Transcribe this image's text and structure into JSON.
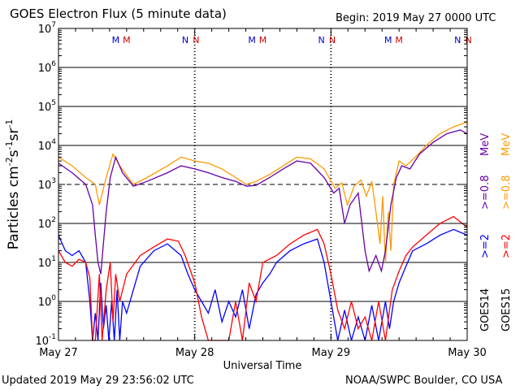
{
  "header": {
    "title": "GOES Electron Flux (5 minute data)",
    "begin": "Begin: 2019 May 27 0000 UTC"
  },
  "footer": {
    "updated": "Updated 2019 May 29 23:56:02 UTC",
    "credit": "NOAA/SWPC Boulder, CO USA"
  },
  "chart_data": {
    "type": "line",
    "title": "GOES Electron Flux (5 minute data)",
    "xlabel": "Universal Time",
    "ylabel": "Particles cm-2s-1sr-1",
    "yscale": "log",
    "ylim": [
      0.1,
      10000000
    ],
    "xlim_days": [
      0,
      3
    ],
    "x_tick_labels": [
      "May 27",
      "May 28",
      "May 29",
      "May 30"
    ],
    "y_tick_labels": [
      {
        "base": "10",
        "exp": "-1"
      },
      {
        "base": "10",
        "exp": "0"
      },
      {
        "base": "10",
        "exp": "1"
      },
      {
        "base": "10",
        "exp": "2"
      },
      {
        "base": "10",
        "exp": "3"
      },
      {
        "base": "10",
        "exp": "4"
      },
      {
        "base": "10",
        "exp": "5"
      },
      {
        "base": "10",
        "exp": "6"
      },
      {
        "base": "10",
        "exp": "7"
      }
    ],
    "alert_threshold": 1000,
    "grid": true,
    "markers": [
      {
        "label": "M",
        "day": 0.42,
        "color": "#0000cc"
      },
      {
        "label": "M",
        "day": 0.5,
        "color": "#cc0000"
      },
      {
        "label": "N",
        "day": 0.93,
        "color": "#0000cc"
      },
      {
        "label": "N",
        "day": 1.01,
        "color": "#cc0000"
      },
      {
        "label": "M",
        "day": 1.42,
        "color": "#0000cc"
      },
      {
        "label": "M",
        "day": 1.5,
        "color": "#cc0000"
      },
      {
        "label": "N",
        "day": 1.93,
        "color": "#0000cc"
      },
      {
        "label": "N",
        "day": 2.01,
        "color": "#cc0000"
      },
      {
        "label": "M",
        "day": 2.42,
        "color": "#0000cc"
      },
      {
        "label": "M",
        "day": 2.5,
        "color": "#cc0000"
      },
      {
        "label": "N",
        "day": 2.93,
        "color": "#0000cc"
      },
      {
        "label": "N",
        "day": 3.01,
        "color": "#cc0000"
      }
    ],
    "legend": {
      "groups": [
        {
          "label": "GOES14",
          "color": "#000000"
        },
        {
          "label": "GOES15",
          "color": "#000000"
        }
      ],
      "entries": [
        {
          "label": ">=2",
          "color": "#0000ff"
        },
        {
          "label": ">=2",
          "color": "#ff0000"
        },
        {
          "label": ">=0.8",
          "color": "#6600aa"
        },
        {
          "label": ">=0.8",
          "color": "#ff9900"
        }
      ],
      "units": [
        {
          "label": "MeV",
          "color": "#6600aa"
        },
        {
          "label": "MeV",
          "color": "#ff9900"
        }
      ]
    },
    "series": [
      {
        "color": "#ff9900",
        "points": [
          [
            0,
            5000
          ],
          [
            0.1,
            3000
          ],
          [
            0.2,
            1500
          ],
          [
            0.27,
            1000
          ],
          [
            0.3,
            300
          ],
          [
            0.35,
            1500
          ],
          [
            0.4,
            6000
          ],
          [
            0.45,
            3000
          ],
          [
            0.55,
            1000
          ],
          [
            0.65,
            1500
          ],
          [
            0.8,
            3000
          ],
          [
            0.9,
            5000
          ],
          [
            1.0,
            4000
          ],
          [
            1.1,
            3500
          ],
          [
            1.2,
            2500
          ],
          [
            1.3,
            1500
          ],
          [
            1.38,
            1000
          ],
          [
            1.45,
            1200
          ],
          [
            1.55,
            1800
          ],
          [
            1.65,
            3000
          ],
          [
            1.75,
            5000
          ],
          [
            1.85,
            4500
          ],
          [
            1.95,
            2500
          ],
          [
            2.03,
            800
          ],
          [
            2.08,
            1100
          ],
          [
            2.12,
            300
          ],
          [
            2.17,
            900
          ],
          [
            2.22,
            1300
          ],
          [
            2.26,
            500
          ],
          [
            2.3,
            1200
          ],
          [
            2.33,
            200
          ],
          [
            2.36,
            30
          ],
          [
            2.38,
            500
          ],
          [
            2.4,
            10
          ],
          [
            2.42,
            200
          ],
          [
            2.44,
            20
          ],
          [
            2.46,
            1000
          ],
          [
            2.5,
            4000
          ],
          [
            2.55,
            3000
          ],
          [
            2.62,
            5000
          ],
          [
            2.7,
            10000
          ],
          [
            2.8,
            20000
          ],
          [
            2.9,
            30000
          ],
          [
            3.0,
            40000
          ]
        ]
      },
      {
        "color": "#6600aa",
        "points": [
          [
            0,
            3500
          ],
          [
            0.1,
            2000
          ],
          [
            0.2,
            1000
          ],
          [
            0.25,
            300
          ],
          [
            0.27,
            50
          ],
          [
            0.29,
            10
          ],
          [
            0.31,
            5
          ],
          [
            0.35,
            200
          ],
          [
            0.38,
            1500
          ],
          [
            0.42,
            5000
          ],
          [
            0.47,
            2000
          ],
          [
            0.55,
            900
          ],
          [
            0.65,
            1200
          ],
          [
            0.8,
            2000
          ],
          [
            0.9,
            3000
          ],
          [
            1.0,
            2500
          ],
          [
            1.1,
            2000
          ],
          [
            1.2,
            1500
          ],
          [
            1.3,
            1200
          ],
          [
            1.38,
            900
          ],
          [
            1.45,
            950
          ],
          [
            1.55,
            1500
          ],
          [
            1.65,
            2500
          ],
          [
            1.75,
            4000
          ],
          [
            1.85,
            3500
          ],
          [
            1.95,
            1500
          ],
          [
            2.02,
            600
          ],
          [
            2.06,
            800
          ],
          [
            2.1,
            100
          ],
          [
            2.14,
            300
          ],
          [
            2.2,
            600
          ],
          [
            2.25,
            20
          ],
          [
            2.28,
            6
          ],
          [
            2.33,
            15
          ],
          [
            2.37,
            6
          ],
          [
            2.4,
            20
          ],
          [
            2.44,
            300
          ],
          [
            2.48,
            1500
          ],
          [
            2.52,
            3000
          ],
          [
            2.58,
            2500
          ],
          [
            2.65,
            6000
          ],
          [
            2.75,
            12000
          ],
          [
            2.85,
            20000
          ],
          [
            2.95,
            25000
          ],
          [
            3.0,
            20000
          ]
        ]
      },
      {
        "color": "#0000ff",
        "points": [
          [
            0,
            50
          ],
          [
            0.05,
            20
          ],
          [
            0.1,
            15
          ],
          [
            0.15,
            20
          ],
          [
            0.2,
            10
          ],
          [
            0.23,
            1
          ],
          [
            0.25,
            0.1
          ],
          [
            0.27,
            0.5
          ],
          [
            0.29,
            0.1
          ],
          [
            0.31,
            3
          ],
          [
            0.33,
            0.2
          ],
          [
            0.35,
            0.8
          ],
          [
            0.37,
            0.1
          ],
          [
            0.39,
            1
          ],
          [
            0.41,
            0.1
          ],
          [
            0.43,
            2
          ],
          [
            0.45,
            0.1
          ],
          [
            0.47,
            1
          ],
          [
            0.5,
            0.5
          ],
          [
            0.55,
            2
          ],
          [
            0.6,
            8
          ],
          [
            0.7,
            20
          ],
          [
            0.8,
            30
          ],
          [
            0.9,
            15
          ],
          [
            0.95,
            5
          ],
          [
            1.0,
            2
          ],
          [
            1.05,
            1
          ],
          [
            1.1,
            0.5
          ],
          [
            1.15,
            2
          ],
          [
            1.2,
            0.3
          ],
          [
            1.25,
            1
          ],
          [
            1.3,
            0.4
          ],
          [
            1.35,
            2
          ],
          [
            1.4,
            0.2
          ],
          [
            1.45,
            1.5
          ],
          [
            1.5,
            3
          ],
          [
            1.55,
            5
          ],
          [
            1.6,
            10
          ],
          [
            1.7,
            20
          ],
          [
            1.8,
            30
          ],
          [
            1.9,
            40
          ],
          [
            1.95,
            10
          ],
          [
            2.0,
            1
          ],
          [
            2.05,
            0.1
          ],
          [
            2.1,
            0.6
          ],
          [
            2.15,
            0.1
          ],
          [
            2.2,
            0.4
          ],
          [
            2.25,
            0.1
          ],
          [
            2.3,
            0.8
          ],
          [
            2.35,
            0.1
          ],
          [
            2.4,
            1
          ],
          [
            2.43,
            0.2
          ],
          [
            2.46,
            1
          ],
          [
            2.5,
            3
          ],
          [
            2.55,
            8
          ],
          [
            2.6,
            20
          ],
          [
            2.7,
            30
          ],
          [
            2.8,
            50
          ],
          [
            2.9,
            70
          ],
          [
            3.0,
            50
          ]
        ]
      },
      {
        "color": "#ff0000",
        "points": [
          [
            0,
            20
          ],
          [
            0.05,
            10
          ],
          [
            0.1,
            8
          ],
          [
            0.15,
            12
          ],
          [
            0.2,
            10
          ],
          [
            0.23,
            4
          ],
          [
            0.25,
            0.1
          ],
          [
            0.27,
            0.1
          ],
          [
            0.3,
            5
          ],
          [
            0.32,
            0.1
          ],
          [
            0.35,
            2
          ],
          [
            0.38,
            10
          ],
          [
            0.4,
            0.3
          ],
          [
            0.42,
            5
          ],
          [
            0.45,
            1
          ],
          [
            0.5,
            5
          ],
          [
            0.6,
            15
          ],
          [
            0.7,
            25
          ],
          [
            0.8,
            40
          ],
          [
            0.88,
            35
          ],
          [
            0.93,
            15
          ],
          [
            1.0,
            3
          ],
          [
            1.05,
            0.4
          ],
          [
            1.1,
            0.1
          ],
          [
            1.15,
            0.1
          ],
          [
            1.2,
            0.1
          ],
          [
            1.25,
            0.1
          ],
          [
            1.3,
            1
          ],
          [
            1.35,
            0.1
          ],
          [
            1.4,
            3
          ],
          [
            1.45,
            1
          ],
          [
            1.5,
            10
          ],
          [
            1.6,
            15
          ],
          [
            1.7,
            30
          ],
          [
            1.8,
            50
          ],
          [
            1.9,
            70
          ],
          [
            1.95,
            30
          ],
          [
            2.0,
            5
          ],
          [
            2.05,
            0.6
          ],
          [
            2.1,
            0.2
          ],
          [
            2.15,
            1
          ],
          [
            2.2,
            0.2
          ],
          [
            2.25,
            0.4
          ],
          [
            2.3,
            0.1
          ],
          [
            2.35,
            1
          ],
          [
            2.4,
            0.1
          ],
          [
            2.45,
            2
          ],
          [
            2.5,
            6
          ],
          [
            2.55,
            15
          ],
          [
            2.6,
            25
          ],
          [
            2.7,
            50
          ],
          [
            2.8,
            100
          ],
          [
            2.9,
            150
          ],
          [
            3.0,
            80
          ]
        ]
      }
    ]
  }
}
